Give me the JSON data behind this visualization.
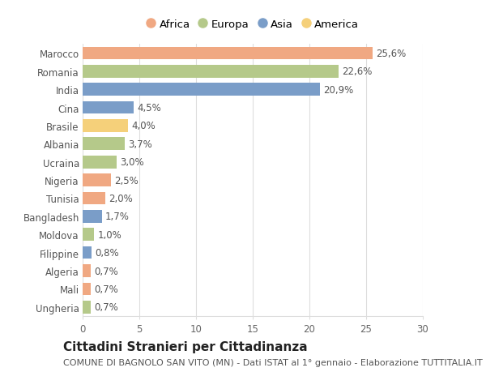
{
  "countries": [
    "Marocco",
    "Romania",
    "India",
    "Cina",
    "Brasile",
    "Albania",
    "Ucraina",
    "Nigeria",
    "Tunisia",
    "Bangladesh",
    "Moldova",
    "Filippine",
    "Algeria",
    "Mali",
    "Ungheria"
  ],
  "values": [
    25.6,
    22.6,
    20.9,
    4.5,
    4.0,
    3.7,
    3.0,
    2.5,
    2.0,
    1.7,
    1.0,
    0.8,
    0.7,
    0.7,
    0.7
  ],
  "labels": [
    "25,6%",
    "22,6%",
    "20,9%",
    "4,5%",
    "4,0%",
    "3,7%",
    "3,0%",
    "2,5%",
    "2,0%",
    "1,7%",
    "1,0%",
    "0,8%",
    "0,7%",
    "0,7%",
    "0,7%"
  ],
  "continents": [
    "Africa",
    "Europa",
    "Asia",
    "Asia",
    "America",
    "Europa",
    "Europa",
    "Africa",
    "Africa",
    "Asia",
    "Europa",
    "Asia",
    "Africa",
    "Africa",
    "Europa"
  ],
  "colors": {
    "Africa": "#F0A882",
    "Europa": "#B5C98A",
    "Asia": "#7A9DC8",
    "America": "#F5D07A"
  },
  "legend_order": [
    "Africa",
    "Europa",
    "Asia",
    "America"
  ],
  "title": "Cittadini Stranieri per Cittadinanza",
  "subtitle": "COMUNE DI BAGNOLO SAN VITO (MN) - Dati ISTAT al 1° gennaio - Elaborazione TUTTITALIA.IT",
  "xlim": [
    0,
    30
  ],
  "xticks": [
    0,
    5,
    10,
    15,
    20,
    25,
    30
  ],
  "background_color": "#ffffff",
  "grid_color": "#dddddd",
  "bar_height": 0.7,
  "title_fontsize": 11,
  "subtitle_fontsize": 8,
  "label_fontsize": 8.5,
  "tick_fontsize": 8.5,
  "legend_fontsize": 9.5
}
